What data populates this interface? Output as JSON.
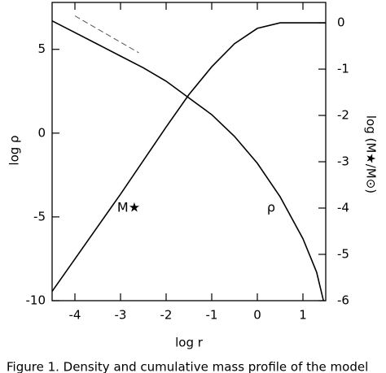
{
  "chart_data": {
    "type": "line",
    "xlabel": "log r",
    "ylabel": "log ρ",
    "y2label": "log (M★/M⊙)",
    "xlim": [
      -4.5,
      1.5
    ],
    "xticks": [
      -4,
      -3,
      -2,
      -1,
      0,
      1
    ],
    "ylim": [
      -10,
      7.8
    ],
    "yticks": [
      -10,
      -5,
      0,
      5
    ],
    "y2lim": [
      -6,
      0.44
    ],
    "y2ticks": [
      -6,
      -5,
      -4,
      -3,
      -2,
      -1,
      0
    ],
    "series": [
      {
        "name": "ρ",
        "color": "#000000",
        "x": [
          -4.5,
          -4,
          -3.5,
          -3,
          -2.5,
          -2,
          -1.5,
          -1,
          -0.5,
          0,
          0.5,
          1.0,
          1.3,
          1.45
        ],
        "values": [
          6.7,
          6.0,
          5.3,
          4.6,
          3.9,
          3.1,
          2.1,
          1.1,
          -0.2,
          -1.8,
          -3.8,
          -6.3,
          -8.3,
          -10
        ]
      },
      {
        "name": "M★",
        "color": "#000000",
        "axis": "y2",
        "x": [
          -4.5,
          -4,
          -3,
          -2,
          -1.5,
          -1,
          -0.5,
          0,
          0.5,
          1.0,
          1.5
        ],
        "values": [
          -5.8,
          -5.1,
          -3.7,
          -2.25,
          -1.55,
          -0.95,
          -0.45,
          -0.12,
          0.0,
          0.0,
          0.0
        ]
      },
      {
        "color": "#555555",
        "dashed": true,
        "x": [
          -4,
          -2.6
        ],
        "values": [
          7.0,
          4.8
        ]
      }
    ],
    "caption": "Figure 1. Density and cumulative mass profile of the model"
  }
}
